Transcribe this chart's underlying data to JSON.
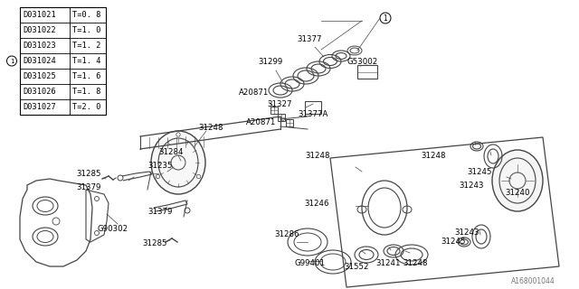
{
  "bg_color": "#ffffff",
  "line_color": "#000000",
  "diagram_color": "#444444",
  "table_rows": [
    [
      "D031021",
      "T=0. 8"
    ],
    [
      "D031022",
      "T=1. 0"
    ],
    [
      "D031023",
      "T=1. 2"
    ],
    [
      "D031024",
      "T=1. 4"
    ],
    [
      "D031025",
      "T=1. 6"
    ],
    [
      "D031026",
      "T=1. 8"
    ],
    [
      "D031027",
      "T=2. 0"
    ]
  ],
  "circle_row": 3,
  "watermark_text": "A168001044"
}
